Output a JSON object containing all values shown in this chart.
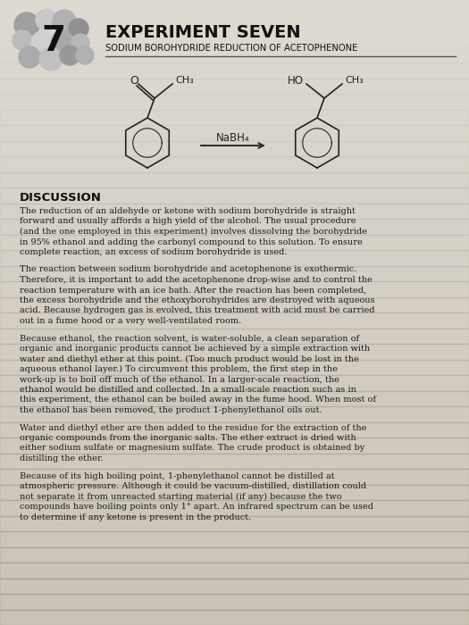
{
  "title1": "EXPERIMENT SEVEN",
  "title2": "SODIUM BOROHYDRIDE REDUCTION OF ACETOPHENONE",
  "reagent": "NaBH₄",
  "section_header": "DISCUSSION",
  "bg_top": "#d8d4cc",
  "bg_bottom": "#c8c4b8",
  "page_bg": "#dedad2",
  "text_color": "#1a1a1a",
  "paragraphs": [
    "The reduction of an aldehyde or ketone with sodium borohydride is straight forward and usually affords a high yield of the alcohol. The usual procedure (and the one employed in this experiment) involves dissolving the borohydride in 95% ethanol and adding the carbonyl compound to this solution. To ensure complete reaction, an excess of sodium borohydride is used.",
    "The reaction between sodium borohydride and acetophenone is exothermic. Therefore, it is important to add the acetophenone drop-wise and to control the reaction temperature with an ice bath. After the reaction has been completed, the excess borohydride and the ethoxyborohydrides are destroyed with aqueous acid. Because hydrogen gas is evolved, this treatment with acid must be carried out in a fume hood or a very well-ventilated room.",
    "Because ethanol, the reaction solvent, is water-soluble, a clean separation of organic and inorganic products cannot be achieved by a simple extraction with water and diethyl ether at this point. (Too much product would be lost in the aqueous ethanol layer.) To circumvent this problem, the first step in the work-up is to boil off much of the ethanol. In a larger-scale reaction, the ethanol would be distilled and collected. In a small-scale reaction such as in this experiment, the ethanol can be boiled away in the fume hood. When most of the ethanol has been removed, the product 1-phenylethanol oils out.",
    "Water and diethyl ether are then added to the residue for the extraction of the organic compounds from the inorganic salts. The ether extract is dried with either sodium sulfate or magnesium sulfate. The crude product is obtained by distilling the ether.",
    "Because of its high boiling point, 1-phenylethanol cannot be distilled at atmospheric pressure. Although it could be vacuum-distilled, distillation could not separate it from unreacted starting material (if any) because the two compounds have boiling points only 1° apart. An infrared spectrum can be used to determine if any ketone is present in the product."
  ]
}
